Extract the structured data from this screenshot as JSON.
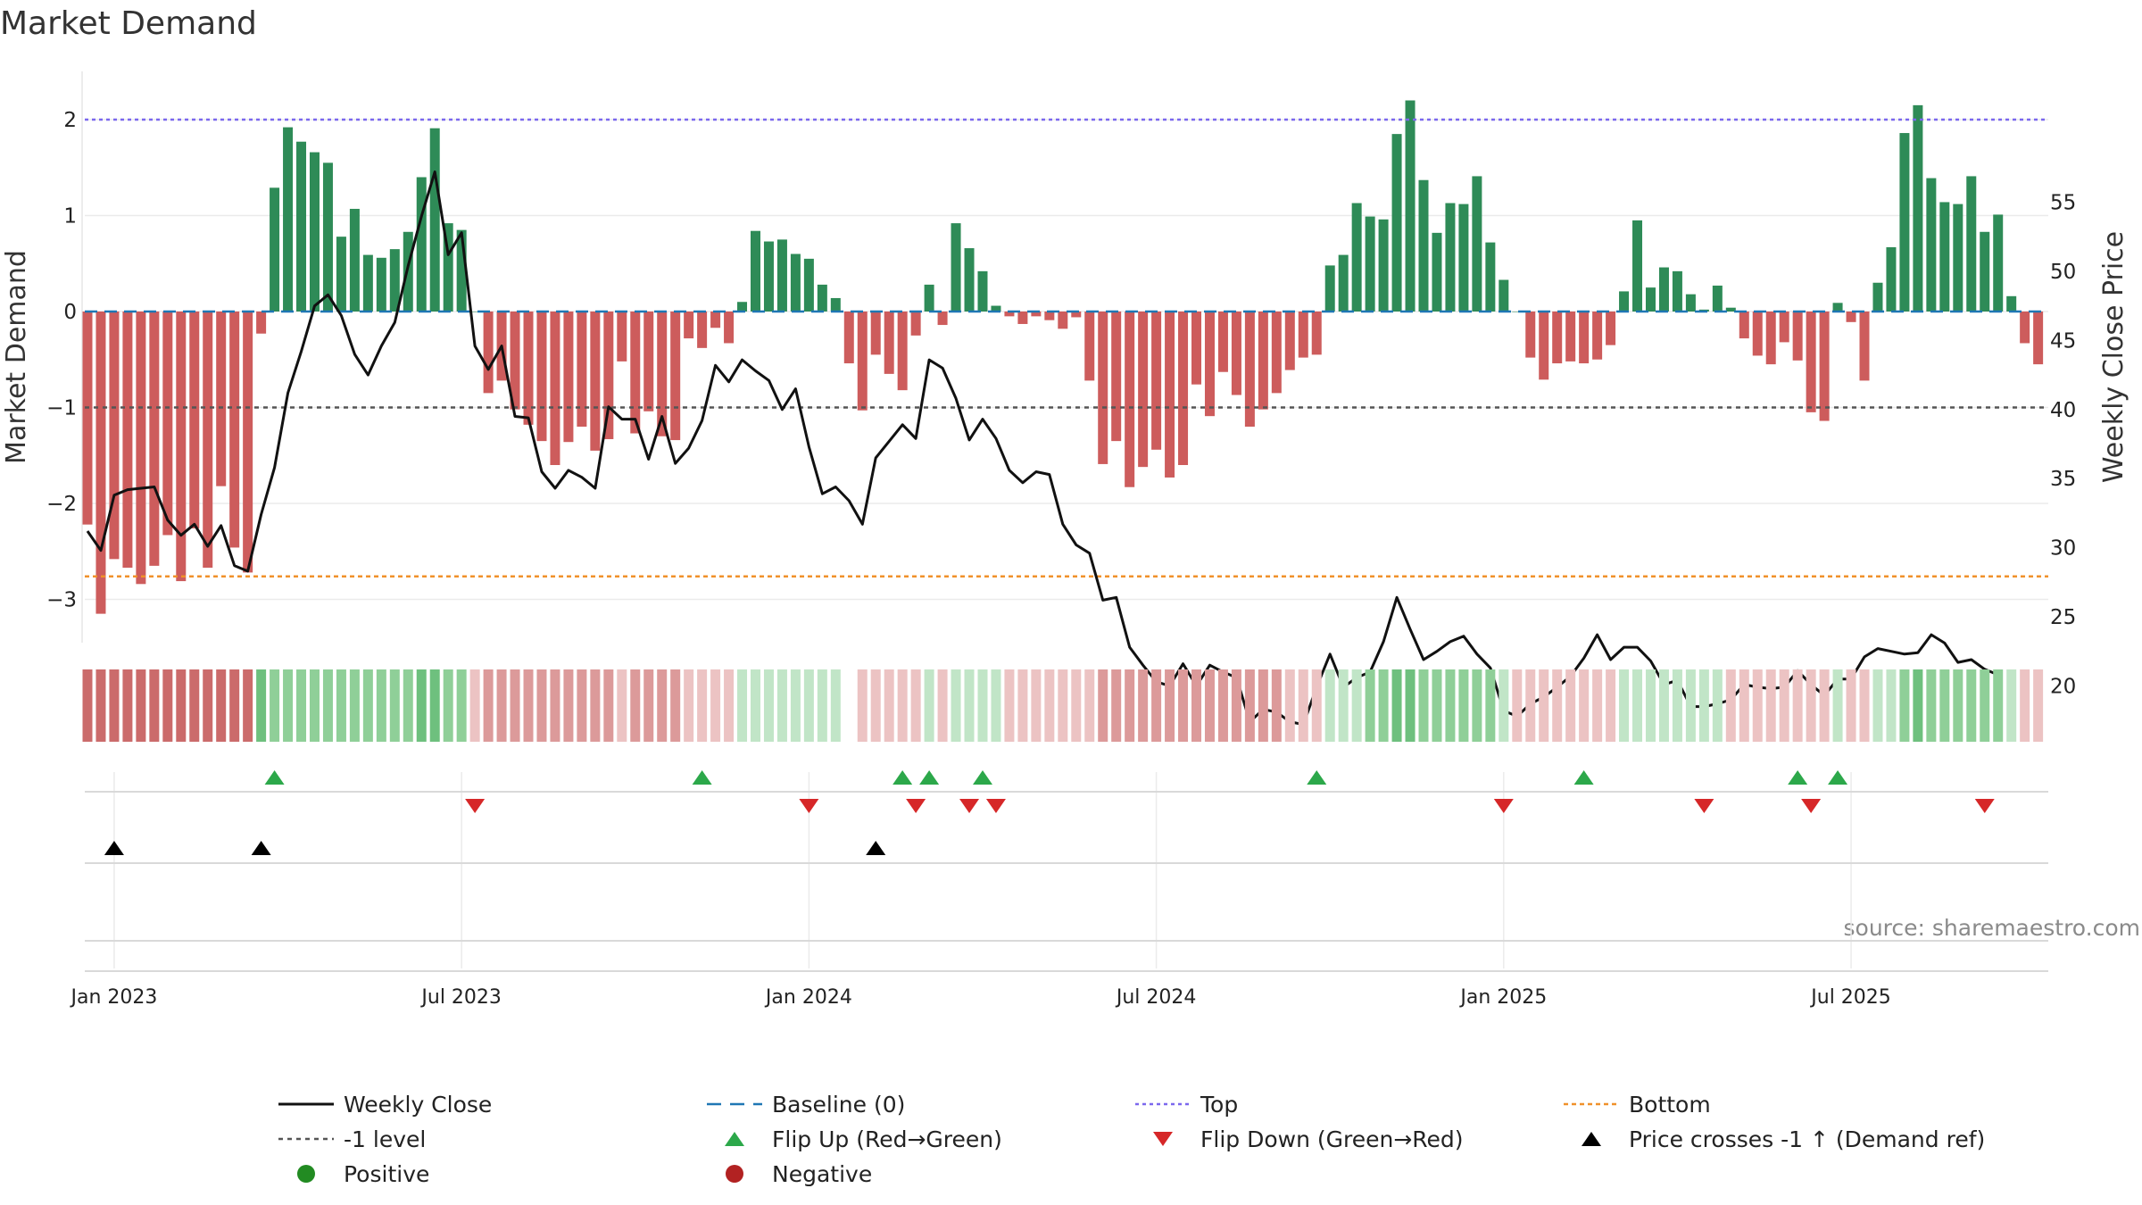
{
  "title": "Market Demand",
  "source": "source: sharemaestro.com",
  "colors": {
    "positive": "#2e8b57",
    "negative": "#cd5c5c",
    "price": "#111111",
    "top": "#7b68ee",
    "bottom": "#f0912a",
    "level": "#555555",
    "baseline": "#1f77b4",
    "flip_up": "#2ca84a",
    "flip_down": "#d62728",
    "cross": "#000000",
    "positive_dot": "#228b22",
    "negative_dot": "#b22222"
  },
  "chart_data": {
    "type": "bar",
    "title": "Market Demand",
    "ylabel": "Market Demand",
    "y2label": "Weekly Close Price",
    "ylim": [
      -3.45,
      2.35
    ],
    "y2lim": [
      15.2,
      56
    ],
    "yticks": [
      "2",
      "1",
      "0",
      "−1",
      "−2",
      "−3"
    ],
    "yticks_values": [
      2,
      1,
      0,
      -1,
      -2,
      -3
    ],
    "y2ticks": [
      "55",
      "50",
      "45",
      "40",
      "35",
      "30",
      "25",
      "20"
    ],
    "y2ticks_values": [
      55,
      50,
      45,
      40,
      35,
      30,
      25,
      20
    ],
    "xticks": [
      "Jan 2023",
      "Jul 2023",
      "Jan 2024",
      "Jul 2024",
      "Jan 2025",
      "Jul 2025"
    ],
    "xticks_week": [
      2,
      28,
      54,
      80,
      106,
      132
    ],
    "top_level": 2,
    "bottom_level": -2.76,
    "ref_level": -1,
    "demand": [
      -2.22,
      -3.15,
      -2.58,
      -2.67,
      -2.84,
      -2.65,
      -2.33,
      -2.81,
      -2.26,
      -2.67,
      -1.82,
      -2.46,
      -2.72,
      -0.23,
      1.29,
      1.92,
      1.77,
      1.66,
      1.55,
      0.78,
      1.07,
      0.59,
      0.56,
      0.65,
      0.83,
      1.4,
      1.91,
      0.92,
      0.85,
      0,
      -0.85,
      -0.72,
      -1.02,
      -1.18,
      -1.35,
      -1.6,
      -1.36,
      -1.2,
      -1.45,
      -1.33,
      -0.52,
      -1.27,
      -1.04,
      -1.3,
      -1.34,
      -0.28,
      -0.38,
      -0.17,
      -0.33,
      0.1,
      0.84,
      0.73,
      0.75,
      0.6,
      0.55,
      0.28,
      0.14,
      -0.54,
      -1.03,
      -0.45,
      -0.65,
      -0.82,
      -0.25,
      0.28,
      -0.14,
      0.92,
      0.66,
      0.42,
      0.06,
      -0.05,
      -0.13,
      -0.05,
      -0.09,
      -0.18,
      -0.06,
      -0.72,
      -1.59,
      -1.35,
      -1.83,
      -1.62,
      -1.44,
      -1.73,
      -1.6,
      -0.76,
      -1.09,
      -0.63,
      -0.87,
      -1.2,
      -1.02,
      -0.85,
      -0.61,
      -0.48,
      -0.45,
      0.48,
      0.59,
      1.13,
      0.99,
      0.96,
      1.85,
      2.2,
      1.37,
      0.82,
      1.13,
      1.12,
      1.41,
      0.72,
      0.33,
      0,
      -0.48,
      -0.71,
      -0.54,
      -0.52,
      -0.54,
      -0.5,
      -0.35,
      0.21,
      0.95,
      0.25,
      0.46,
      0.42,
      0.18,
      0.02,
      0.27,
      0.04,
      -0.28,
      -0.46,
      -0.55,
      -0.32,
      -0.51,
      -1.05,
      -1.14,
      0.09,
      -0.11,
      -0.72,
      0.3,
      0.67,
      1.86,
      2.15,
      1.39,
      1.14,
      1.12,
      1.41,
      0.83,
      1.01,
      0.16,
      -0.33,
      -0.55
    ],
    "price": [
      31.2,
      29.8,
      33.8,
      34.2,
      34.3,
      34.4,
      32,
      30.9,
      31.7,
      30.1,
      31.6,
      28.7,
      28.3,
      32.4,
      35.8,
      41.2,
      44.2,
      47.5,
      48.3,
      46.8,
      44,
      42.5,
      44.6,
      46.3,
      50.4,
      54,
      57.2,
      51.2,
      52.8,
      44.6,
      42.9,
      44.6,
      39.5,
      39.4,
      35.5,
      34.3,
      35.6,
      35.1,
      34.3,
      40.2,
      39.3,
      39.3,
      36.4,
      39.5,
      36.1,
      37.2,
      39.2,
      43.2,
      42,
      43.6,
      42.8,
      42.1,
      40,
      41.5,
      37.3,
      33.9,
      34.4,
      33.4,
      31.7,
      36.5,
      37.7,
      38.9,
      37.9,
      43.6,
      43,
      40.8,
      37.8,
      39.3,
      37.9,
      35.6,
      34.7,
      35.5,
      35.3,
      31.7,
      30.2,
      29.6,
      26.2,
      26.4,
      22.8,
      21.5,
      20.3,
      20,
      21.6,
      20,
      21.5,
      21,
      20.6,
      17.4,
      18.3,
      18.1,
      17.4,
      17.2,
      19.9,
      22.3,
      19.9,
      20.6,
      21,
      23.2,
      26.4,
      24.1,
      21.9,
      22.5,
      23.2,
      23.6,
      22.3,
      21.3,
      18.2,
      17.8,
      18.7,
      19.2,
      19.9,
      20.7,
      22,
      23.7,
      21.9,
      22.8,
      22.8,
      21.8,
      20.1,
      20.4,
      18.5,
      18.5,
      18.7,
      19,
      20.1,
      19.9,
      19.8,
      19.9,
      21.1,
      20.1,
      19.3,
      20.5,
      20.5,
      22.1,
      22.7,
      22.5,
      22.3,
      22.4,
      23.7,
      23.1,
      21.7,
      21.9,
      21.2,
      20.8
    ],
    "week_shade": [
      -3,
      -3,
      -3,
      -3,
      -3,
      -3,
      -3,
      -3,
      -3,
      -3,
      -3,
      -3,
      -3,
      3,
      2,
      2,
      2,
      2,
      2,
      2,
      2,
      2,
      2,
      2,
      2,
      3,
      3,
      2,
      2,
      -1,
      -2,
      -2,
      -2,
      -2,
      -2,
      -2,
      -2,
      -2,
      -2,
      -2,
      -1,
      -2,
      -2,
      -2,
      -2,
      -1,
      -1,
      -1,
      -1,
      1,
      1,
      1,
      1,
      1,
      1,
      1,
      1,
      -1,
      -1,
      -1,
      -1,
      -1,
      -1,
      1,
      -1,
      1,
      1,
      1,
      1,
      -1,
      -1,
      -1,
      -1,
      -1,
      -1,
      -1,
      -2,
      -2,
      -2,
      -2,
      -2,
      -2,
      -2,
      -2,
      -2,
      -2,
      -2,
      -2,
      -2,
      -2,
      -1,
      -1,
      -1,
      1,
      1,
      1,
      2,
      2,
      3,
      3,
      2,
      2,
      2,
      2,
      2,
      2,
      1,
      -1,
      -1,
      -1,
      -1,
      -1,
      -1,
      -1,
      -1,
      1,
      1,
      1,
      1,
      1,
      1,
      1,
      1,
      -1,
      -1,
      -1,
      -1,
      -1,
      -1,
      -1,
      -1,
      1,
      -1,
      -1,
      1,
      1,
      2,
      3,
      2,
      2,
      2,
      2,
      2,
      2,
      1,
      -1,
      -1
    ],
    "shade_gap_weeks": [
      57
    ],
    "flip_up_weeks": [
      14,
      46,
      61,
      63,
      67,
      92,
      112,
      128,
      131
    ],
    "flip_down_weeks": [
      29,
      54,
      62,
      66,
      68,
      106,
      121,
      129,
      142
    ],
    "price_cross_weeks": [
      2,
      13,
      59
    ],
    "legend": [
      {
        "label": "Weekly Close",
        "kind": "line"
      },
      {
        "label": "Baseline (0)",
        "kind": "dash"
      },
      {
        "label": "Top",
        "kind": "dot-blue"
      },
      {
        "label": "Bottom",
        "kind": "dot-orange"
      },
      {
        "label": "-1 level",
        "kind": "dot-gray"
      },
      {
        "label": "Flip Up (Red→Green)",
        "kind": "tri-up-green"
      },
      {
        "label": "Flip Down (Green→Red)",
        "kind": "tri-down-red"
      },
      {
        "label": "Price crosses -1 ↑ (Demand ref)",
        "kind": "tri-up-black"
      },
      {
        "label": "Positive",
        "kind": "dot-green"
      },
      {
        "label": "Negative",
        "kind": "dot-red"
      }
    ]
  }
}
